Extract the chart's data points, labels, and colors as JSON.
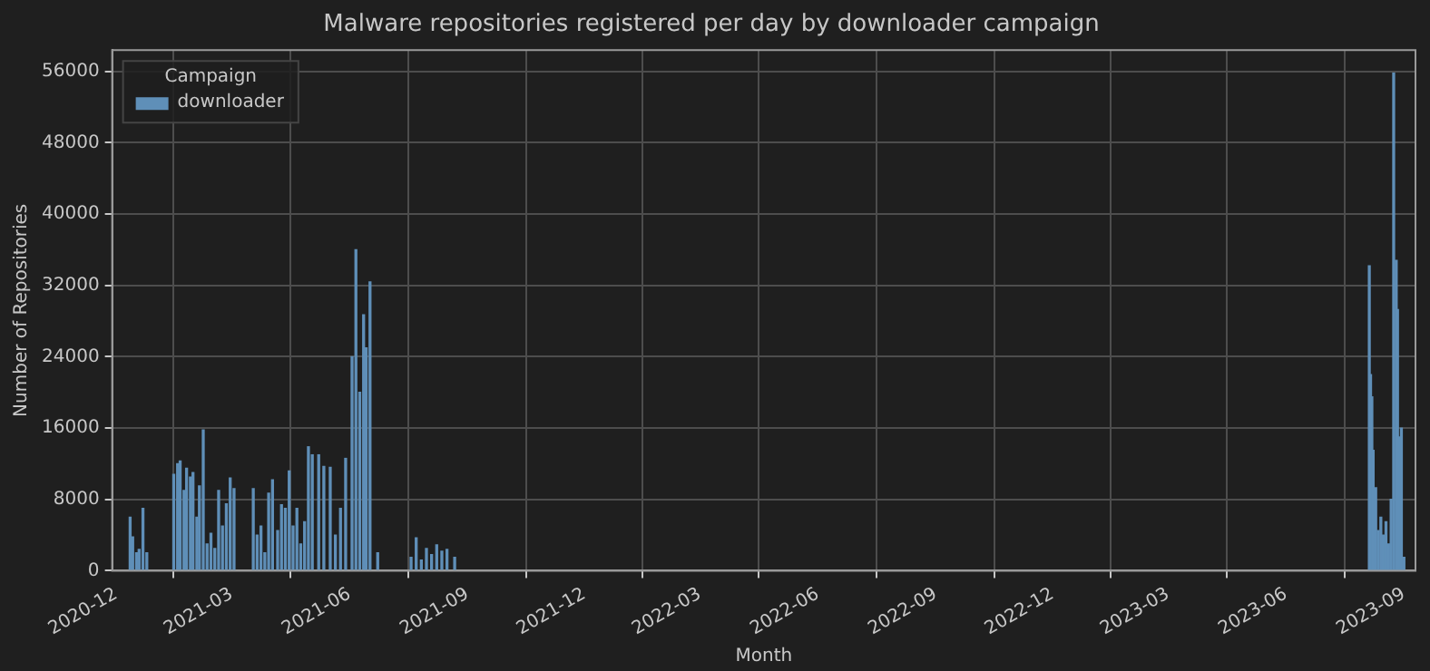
{
  "chart_data": {
    "type": "bar",
    "title": "Malware repositories registered per day by downloader campaign",
    "xlabel": "Month",
    "ylabel": "Number of Repositories",
    "legend_title": "Campaign",
    "legend": "top left",
    "grid": true,
    "x": [
      "2020-12-12",
      "2020-12-14",
      "2020-12-17",
      "2020-12-19",
      "2020-12-22",
      "2020-12-25",
      "2021-01-15",
      "2021-01-18",
      "2021-01-20",
      "2021-01-23",
      "2021-01-25",
      "2021-01-28",
      "2021-01-30",
      "2021-02-02",
      "2021-02-04",
      "2021-02-07",
      "2021-02-10",
      "2021-02-13",
      "2021-02-16",
      "2021-02-19",
      "2021-02-22",
      "2021-02-25",
      "2021-02-28",
      "2021-03-03",
      "2021-03-18",
      "2021-03-21",
      "2021-03-24",
      "2021-03-27",
      "2021-03-30",
      "2021-04-02",
      "2021-04-06",
      "2021-04-09",
      "2021-04-12",
      "2021-04-15",
      "2021-04-18",
      "2021-04-21",
      "2021-04-24",
      "2021-04-27",
      "2021-04-30",
      "2021-05-03",
      "2021-05-08",
      "2021-05-12",
      "2021-05-17",
      "2021-05-21",
      "2021-05-25",
      "2021-05-29",
      "2021-06-03",
      "2021-06-06",
      "2021-06-09",
      "2021-06-12",
      "2021-06-14",
      "2021-06-17",
      "2021-06-23",
      "2021-07-19",
      "2021-07-23",
      "2021-07-27",
      "2021-07-31",
      "2021-08-04",
      "2021-08-08",
      "2021-08-12",
      "2021-08-16",
      "2021-08-22",
      "2023-08-05",
      "2023-08-06",
      "2023-08-07",
      "2023-08-08",
      "2023-08-10",
      "2023-08-12",
      "2023-08-14",
      "2023-08-16",
      "2023-08-18",
      "2023-08-20",
      "2023-08-22",
      "2023-08-24",
      "2023-08-26",
      "2023-08-27",
      "2023-08-28",
      "2023-08-30",
      "2023-09-01"
    ],
    "series": [
      {
        "name": "downloader",
        "color": "#5f8fb8",
        "values": [
          6000,
          3800,
          2000,
          2400,
          7000,
          2000,
          10800,
          12000,
          12300,
          9000,
          11500,
          10500,
          11000,
          6000,
          9500,
          15800,
          3000,
          4200,
          2500,
          9000,
          5000,
          7500,
          10400,
          9200,
          9200,
          4000,
          5000,
          2000,
          8700,
          10200,
          4500,
          7400,
          7000,
          11200,
          5000,
          7000,
          3000,
          5500,
          13900,
          13000,
          13000,
          11700,
          11600,
          4000,
          7000,
          12600,
          24000,
          36000,
          20000,
          28700,
          25000,
          32400,
          2000,
          1500,
          3700,
          1200,
          2500,
          1800,
          2900,
          2200,
          2400,
          1500,
          34200,
          22000,
          19500,
          13500,
          9300,
          4500,
          6000,
          4000,
          5500,
          3000,
          8000,
          55800,
          34800,
          29300,
          15000,
          16000,
          1500
        ]
      }
    ],
    "xlim": [
      "2020-11-28",
      "2023-09-10"
    ],
    "xticks": [
      "2020-12",
      "2021-03",
      "2021-06",
      "2021-09",
      "2021-12",
      "2022-03",
      "2022-06",
      "2022-09",
      "2022-12",
      "2023-03",
      "2023-06",
      "2023-09"
    ],
    "ylim": [
      0,
      58400
    ],
    "yticks": [
      0,
      8000,
      16000,
      24000,
      32000,
      40000,
      48000,
      56000
    ]
  }
}
